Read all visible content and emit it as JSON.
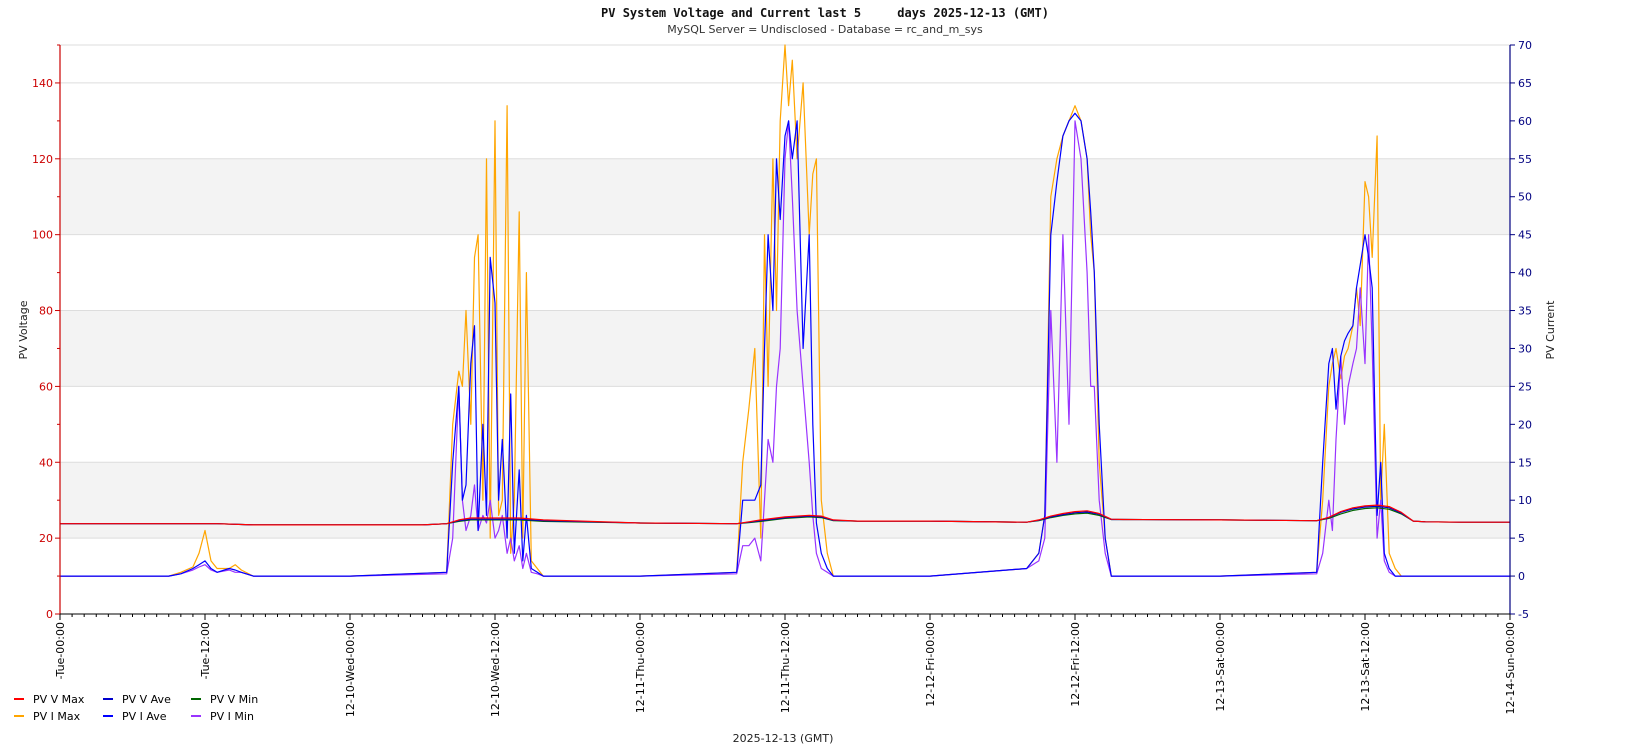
{
  "chart_data": {
    "type": "line",
    "title": "PV System Voltage and Current last 5     days 2025-12-13 (GMT)",
    "subtitle": "MySQL Server = Undisclosed - Database = rc_and_m_sys",
    "xlabel": "2025-12-13 (GMT)",
    "ylabel_left": "PV Voltage",
    "ylabel_right": "PV Current",
    "ylim_left": [
      0,
      150
    ],
    "ylim_right": [
      -5,
      70
    ],
    "yticks_left": [
      0,
      20,
      40,
      60,
      80,
      100,
      120,
      140
    ],
    "yticks_right": [
      -5,
      0,
      5,
      10,
      15,
      20,
      25,
      30,
      35,
      40,
      45,
      50,
      55,
      60,
      65,
      70
    ],
    "xlim_hours": [
      0,
      120
    ],
    "x_ticks": [
      {
        "hour": 0,
        "label": "-Tue-00:00"
      },
      {
        "hour": 12,
        "label": "-Tue-12:00"
      },
      {
        "hour": 24,
        "label": "12-10-Wed-00:00"
      },
      {
        "hour": 36,
        "label": "12-10-Wed-12:00"
      },
      {
        "hour": 48,
        "label": "12-11-Thu-00:00"
      },
      {
        "hour": 60,
        "label": "12-11-Thu-12:00"
      },
      {
        "hour": 72,
        "label": "12-12-Fri-00:00"
      },
      {
        "hour": 84,
        "label": "12-12-Fri-12:00"
      },
      {
        "hour": 96,
        "label": "12-13-Sat-00:00"
      },
      {
        "hour": 108,
        "label": "12-13-Sat-12:00"
      },
      {
        "hour": 120,
        "label": "12-14-Sun-00:00"
      }
    ],
    "grid": true,
    "legend_position": "bottom-left",
    "series": [
      {
        "name": "PV V Max",
        "axis": "left",
        "color": "#ff0000",
        "x": [
          0,
          10,
          11,
          12,
          13,
          16,
          24,
          30,
          32,
          33,
          34,
          36,
          38,
          40,
          48,
          56,
          57,
          58,
          60,
          61,
          62,
          63,
          64,
          66,
          72,
          80,
          81,
          82,
          83,
          84,
          85,
          86,
          87,
          88,
          96,
          104,
          105,
          106,
          107,
          108,
          109,
          110,
          111,
          112,
          113,
          116,
          120
        ],
        "y": [
          23.8,
          23.8,
          23.8,
          23.8,
          23.8,
          23.5,
          23.5,
          23.5,
          23.8,
          24.8,
          25.3,
          25.3,
          25.3,
          24.8,
          24.0,
          23.8,
          24.3,
          24.8,
          25.6,
          25.8,
          26.0,
          25.8,
          24.8,
          24.5,
          24.5,
          24.2,
          24.8,
          25.8,
          26.5,
          27.0,
          27.2,
          26.5,
          25.0,
          24.9,
          24.8,
          24.6,
          25.5,
          27.0,
          28.0,
          28.5,
          28.7,
          28.3,
          26.8,
          24.5,
          24.3,
          24.2,
          24.2
        ]
      },
      {
        "name": "PV V Ave",
        "axis": "left",
        "color": "#0000cc",
        "x": [
          0,
          10,
          11,
          12,
          13,
          16,
          24,
          30,
          32,
          33,
          34,
          36,
          38,
          40,
          48,
          56,
          57,
          58,
          60,
          61,
          62,
          63,
          64,
          66,
          72,
          80,
          81,
          82,
          83,
          84,
          85,
          86,
          87,
          88,
          96,
          104,
          105,
          106,
          107,
          108,
          109,
          110,
          111,
          112,
          113,
          116,
          120
        ],
        "y": [
          23.8,
          23.8,
          23.8,
          23.8,
          23.8,
          23.5,
          23.5,
          23.5,
          23.8,
          24.6,
          25.0,
          25.0,
          25.0,
          24.6,
          24.0,
          23.8,
          24.2,
          24.6,
          25.4,
          25.6,
          25.8,
          25.6,
          24.7,
          24.5,
          24.5,
          24.2,
          24.7,
          25.6,
          26.2,
          26.7,
          26.9,
          26.3,
          24.9,
          24.9,
          24.8,
          24.6,
          25.4,
          26.8,
          27.7,
          28.2,
          28.4,
          28.0,
          26.6,
          24.5,
          24.3,
          24.2,
          24.2
        ]
      },
      {
        "name": "PV V Min",
        "axis": "left",
        "color": "#006600",
        "x": [
          0,
          10,
          11,
          12,
          13,
          16,
          24,
          30,
          32,
          33,
          34,
          36,
          38,
          40,
          48,
          56,
          57,
          58,
          60,
          61,
          62,
          63,
          64,
          66,
          72,
          80,
          81,
          82,
          83,
          84,
          85,
          86,
          87,
          88,
          96,
          104,
          105,
          106,
          107,
          108,
          109,
          110,
          111,
          112,
          113,
          116,
          120
        ],
        "y": [
          23.8,
          23.8,
          23.8,
          23.8,
          23.8,
          23.5,
          23.5,
          23.5,
          23.8,
          24.4,
          24.8,
          24.8,
          24.8,
          24.4,
          24.0,
          23.8,
          24.1,
          24.4,
          25.2,
          25.4,
          25.6,
          25.4,
          24.6,
          24.5,
          24.5,
          24.2,
          24.6,
          25.4,
          26.0,
          26.4,
          26.6,
          26.0,
          24.9,
          24.9,
          24.8,
          24.6,
          25.2,
          26.4,
          27.3,
          27.8,
          28.0,
          27.6,
          26.4,
          24.5,
          24.3,
          24.2,
          24.2
        ]
      },
      {
        "name": "PV I Max",
        "axis": "right",
        "color": "#ffa500",
        "x": [
          0,
          9,
          10,
          11,
          11.5,
          12,
          12.5,
          13,
          14,
          14.5,
          15,
          16,
          24,
          32,
          32.5,
          33,
          33.3,
          33.6,
          34,
          34.3,
          34.6,
          35,
          35.3,
          35.6,
          36,
          36.3,
          36.6,
          37,
          37.3,
          37.6,
          38,
          38.3,
          38.6,
          39,
          39.5,
          40,
          48,
          56,
          56.5,
          57,
          57.5,
          58,
          58.3,
          58.6,
          59,
          59.3,
          59.6,
          60,
          60.3,
          60.6,
          61,
          61.5,
          62,
          62.3,
          62.6,
          63,
          63.5,
          64,
          64.5,
          65,
          72,
          80,
          81,
          81.5,
          82,
          82.5,
          83,
          83.5,
          84,
          84.5,
          85,
          85.3,
          85.6,
          86,
          86.5,
          87,
          88,
          96,
          104,
          104.5,
          105,
          105.3,
          105.6,
          106,
          106.3,
          106.6,
          107,
          107.3,
          107.6,
          108,
          108.3,
          108.6,
          109,
          109.3,
          109.6,
          110,
          110.5,
          111,
          112,
          120
        ],
        "y": [
          0,
          0,
          0.5,
          1.2,
          3,
          6,
          2,
          1,
          1,
          1.5,
          0.8,
          0,
          0,
          0.5,
          20,
          27,
          25,
          35,
          20,
          42,
          45,
          10,
          55,
          5,
          60,
          8,
          10,
          62,
          3,
          10,
          48,
          5,
          40,
          2,
          1,
          0,
          0,
          0.5,
          15,
          22,
          30,
          5,
          45,
          25,
          55,
          35,
          60,
          70,
          62,
          68,
          55,
          65,
          45,
          53,
          55,
          10,
          3,
          0,
          0,
          0,
          0,
          1,
          3,
          8,
          50,
          55,
          58,
          60,
          62,
          60,
          55,
          45,
          40,
          15,
          5,
          0,
          0,
          0,
          0.5,
          10,
          25,
          28,
          30,
          26,
          29,
          30,
          33,
          38,
          33,
          52,
          50,
          42,
          58,
          10,
          20,
          3,
          1,
          0,
          0,
          0
        ]
      },
      {
        "name": "PV I Ave",
        "axis": "right",
        "color": "#0000ff",
        "x": [
          0,
          9,
          10,
          11,
          11.5,
          12,
          12.5,
          13,
          14,
          14.5,
          15,
          16,
          24,
          32,
          32.5,
          33,
          33.3,
          33.6,
          34,
          34.3,
          34.6,
          35,
          35.3,
          35.6,
          36,
          36.3,
          36.6,
          37,
          37.3,
          37.6,
          38,
          38.3,
          38.6,
          39,
          39.5,
          40,
          48,
          56,
          56.5,
          57,
          57.5,
          58,
          58.3,
          58.6,
          59,
          59.3,
          59.6,
          60,
          60.3,
          60.6,
          61,
          61.5,
          62,
          62.3,
          62.6,
          63,
          63.5,
          64,
          64.5,
          65,
          72,
          80,
          81,
          81.5,
          82,
          82.5,
          83,
          83.5,
          84,
          84.5,
          85,
          85.3,
          85.6,
          86,
          86.5,
          87,
          88,
          96,
          104,
          104.5,
          105,
          105.3,
          105.6,
          106,
          106.3,
          106.6,
          107,
          107.3,
          107.6,
          108,
          108.3,
          108.6,
          109,
          109.3,
          109.6,
          110,
          110.5,
          111,
          112,
          120
        ],
        "y": [
          0,
          0,
          0.3,
          1,
          1.5,
          2,
          1,
          0.5,
          1,
          0.8,
          0.5,
          0,
          0,
          0.5,
          15,
          25,
          10,
          12,
          28,
          33,
          6,
          20,
          8,
          42,
          36,
          10,
          18,
          5,
          24,
          3,
          14,
          2,
          8,
          1,
          0.5,
          0,
          0,
          0.5,
          10,
          10,
          10,
          12,
          30,
          45,
          35,
          55,
          47,
          58,
          60,
          55,
          60,
          30,
          45,
          20,
          7,
          3,
          1,
          0,
          0,
          0,
          0,
          1,
          3,
          8,
          45,
          52,
          58,
          60,
          61,
          60,
          55,
          48,
          40,
          20,
          5,
          0,
          0,
          0,
          0.5,
          15,
          28,
          30,
          22,
          29,
          31,
          32,
          33,
          38,
          41,
          45,
          42,
          38,
          8,
          15,
          3,
          1,
          0,
          0,
          0,
          0
        ]
      },
      {
        "name": "PV I Min",
        "axis": "right",
        "color": "#9933ff",
        "x": [
          0,
          9,
          10,
          11,
          11.5,
          12,
          12.5,
          13,
          14,
          14.5,
          15,
          16,
          24,
          32,
          32.5,
          33,
          33.3,
          33.6,
          34,
          34.3,
          34.6,
          35,
          35.3,
          35.6,
          36,
          36.3,
          36.6,
          37,
          37.3,
          37.6,
          38,
          38.3,
          38.6,
          39,
          39.5,
          40,
          48,
          56,
          56.5,
          57,
          57.5,
          58,
          58.3,
          58.6,
          59,
          59.3,
          59.6,
          60,
          60.3,
          60.6,
          61,
          61.5,
          62,
          62.3,
          62.6,
          63,
          63.5,
          64,
          64.5,
          65,
          72,
          80,
          81,
          81.5,
          82,
          82.5,
          83,
          83.5,
          84,
          84.5,
          85,
          85.3,
          85.6,
          86,
          86.5,
          87,
          88,
          96,
          104,
          104.5,
          105,
          105.3,
          105.6,
          106,
          106.3,
          106.6,
          107,
          107.3,
          107.6,
          108,
          108.3,
          108.6,
          109,
          109.3,
          109.6,
          110,
          110.5,
          111,
          112,
          120
        ],
        "y": [
          0,
          0,
          0.3,
          0.8,
          1.2,
          1.5,
          0.8,
          0.5,
          0.8,
          0.5,
          0.5,
          0,
          0,
          0.3,
          5,
          25,
          10,
          6,
          8,
          12,
          6,
          8,
          7,
          10,
          5,
          6,
          8,
          3,
          5,
          2,
          4,
          1,
          3,
          0.5,
          0.3,
          0,
          0,
          0.3,
          4,
          4,
          5,
          2,
          10,
          18,
          15,
          25,
          30,
          55,
          60,
          50,
          35,
          25,
          15,
          8,
          3,
          1,
          0.5,
          0,
          0,
          0,
          0,
          1,
          2,
          5,
          35,
          15,
          45,
          20,
          60,
          55,
          40,
          25,
          25,
          10,
          3,
          0,
          0,
          0,
          0.3,
          3,
          10,
          6,
          18,
          29,
          20,
          25,
          28,
          30,
          38,
          28,
          45,
          30,
          5,
          10,
          2,
          0.5,
          0,
          0,
          0,
          0
        ]
      }
    ]
  }
}
